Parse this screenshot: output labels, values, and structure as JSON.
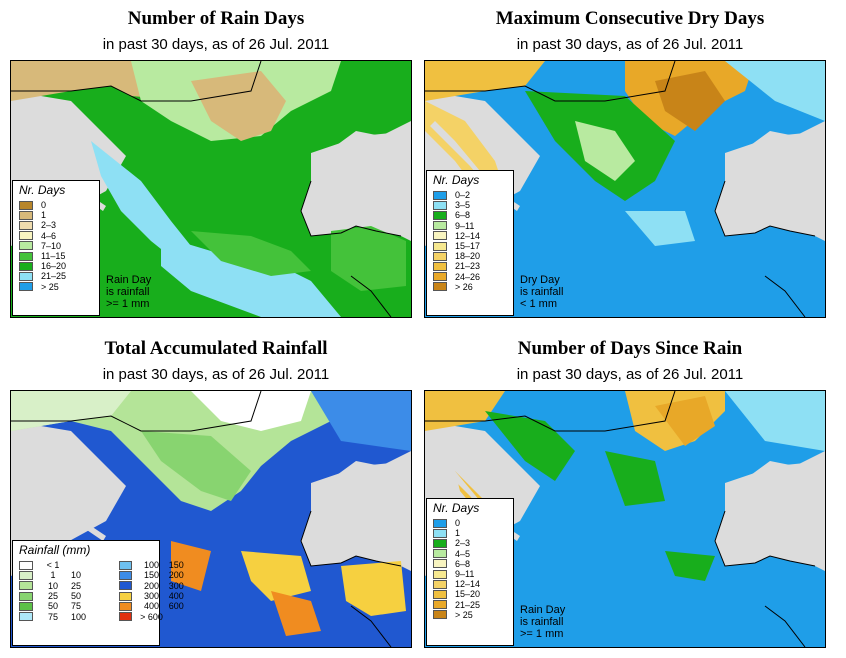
{
  "panels": [
    {
      "title": "Number of Rain Days",
      "subtitle": "in past 30 days, as of  26 Jul. 2011",
      "legend_title": "Nr. Days",
      "legend": [
        {
          "label": "0",
          "color": "#b8862a"
        },
        {
          "label": "1",
          "color": "#d7b97a"
        },
        {
          "label": "2–3",
          "color": "#efdcae"
        },
        {
          "label": "4–6",
          "color": "#f8f4c0"
        },
        {
          "label": "7–10",
          "color": "#b8eaa0"
        },
        {
          "label": "11–15",
          "color": "#44c23a"
        },
        {
          "label": "16–20",
          "color": "#18ae1c"
        },
        {
          "label": "21–25",
          "color": "#8ee0f4"
        },
        {
          "label": "> 25",
          "color": "#1f9ee8"
        }
      ],
      "note": "Rain Day\nis rainfall\n>= 1 mm"
    },
    {
      "title": "Maximum Consecutive Dry Days",
      "subtitle": "in past 30 days, as of  26 Jul. 2011",
      "legend_title": "Nr. Days",
      "legend": [
        {
          "label": "0–2",
          "color": "#1f9ee8"
        },
        {
          "label": "3–5",
          "color": "#8ee0f4"
        },
        {
          "label": "6–8",
          "color": "#18ae1c"
        },
        {
          "label": "9–11",
          "color": "#b8eaa0"
        },
        {
          "label": "12–14",
          "color": "#f8f4c0"
        },
        {
          "label": "15–17",
          "color": "#f6e890"
        },
        {
          "label": "18–20",
          "color": "#f4d266"
        },
        {
          "label": "21–23",
          "color": "#f0c040"
        },
        {
          "label": "24–26",
          "color": "#e8a828"
        },
        {
          "label": "> 26",
          "color": "#c88418"
        }
      ],
      "note": "Dry Day\nis rainfall\n< 1 mm"
    },
    {
      "title": "Total Accumulated Rainfall",
      "subtitle": "in past 30 days, as of  26 Jul. 2011",
      "legend_title": "Rainfall (mm)",
      "legend_left": [
        {
          "lo": "< 1",
          "hi": "",
          "color": "#ffffff"
        },
        {
          "lo": "1",
          "hi": "10",
          "color": "#d8f0c8"
        },
        {
          "lo": "10",
          "hi": "25",
          "color": "#b4e498"
        },
        {
          "lo": "25",
          "hi": "50",
          "color": "#88d470"
        },
        {
          "lo": "50",
          "hi": "75",
          "color": "#5cc048"
        },
        {
          "lo": "75",
          "hi": "100",
          "color": "#aee8f8"
        }
      ],
      "legend_right": [
        {
          "lo": "100",
          "hi": "150",
          "color": "#6ec0f0"
        },
        {
          "lo": "150",
          "hi": "200",
          "color": "#3c8ce8"
        },
        {
          "lo": "200",
          "hi": "300",
          "color": "#2058d0"
        },
        {
          "lo": "300",
          "hi": "400",
          "color": "#f6d040"
        },
        {
          "lo": "400",
          "hi": "600",
          "color": "#f08c20"
        },
        {
          "lo": "> 600",
          "hi": "",
          "color": "#e03010"
        }
      ]
    },
    {
      "title": "Number of Days Since Rain",
      "subtitle": "in past 30 days, as of  26 Jul. 2011",
      "legend_title": "Nr. Days",
      "legend": [
        {
          "label": "0",
          "color": "#1f9ee8"
        },
        {
          "label": "1",
          "color": "#8ee0f4"
        },
        {
          "label": "2–3",
          "color": "#18ae1c"
        },
        {
          "label": "4–5",
          "color": "#b8eaa0"
        },
        {
          "label": "6–8",
          "color": "#f8f4c0"
        },
        {
          "label": "9–11",
          "color": "#f6e890"
        },
        {
          "label": "12–14",
          "color": "#f4d266"
        },
        {
          "label": "15–20",
          "color": "#f0c040"
        },
        {
          "label": "21–25",
          "color": "#e8a828"
        },
        {
          "label": "> 25",
          "color": "#c88418"
        }
      ],
      "note": "Rain Day\nis rainfall\n>= 1 mm"
    }
  ],
  "map_colors": {
    "ocean": "#dcdcdc",
    "border": "#000000"
  }
}
